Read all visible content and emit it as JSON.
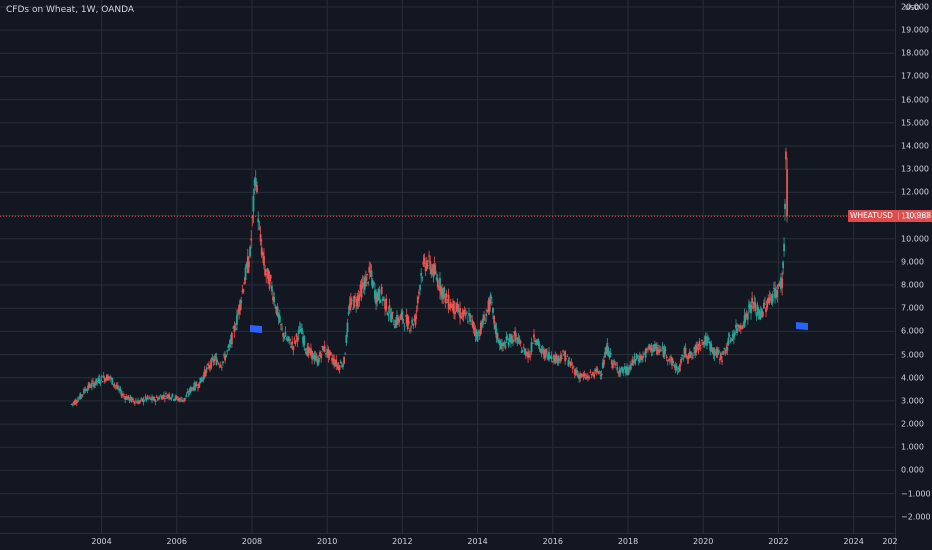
{
  "header": {
    "title": "CFDs on Wheat, 1W, OANDA",
    "currency": "USD"
  },
  "colors": {
    "background": "#131722",
    "grid": "#2a2e39",
    "up": "#26a69a",
    "down": "#ef5350",
    "last_price_line": "#ef5350",
    "flag": "#2962ff"
  },
  "price_tag": {
    "symbol": "WHEATUSD",
    "value": "10.968"
  },
  "icons": [
    "flag-icon",
    "flag-icon"
  ],
  "chart_data": {
    "type": "candlestick",
    "title": "CFDs on Wheat, 1W, OANDA",
    "y_ticks": [
      "20.000",
      "19.000",
      "18.000",
      "17.000",
      "16.000",
      "15.000",
      "14.000",
      "13.000",
      "12.000",
      "11.000",
      "10.000",
      "9.000",
      "8.000",
      "7.000",
      "6.000",
      "5.000",
      "4.000",
      "3.000",
      "2.000",
      "1.000",
      "0.000",
      "−1.000",
      "−2.000"
    ],
    "x_ticks": [
      "2004",
      "2006",
      "2008",
      "2010",
      "2012",
      "2014",
      "2016",
      "2018",
      "2020",
      "2022",
      "2024",
      "202"
    ],
    "ylim": [
      -2.7,
      20.3
    ],
    "xlim": [
      2001.3,
      2025.1
    ],
    "last_value": 10.968,
    "series": [
      {
        "name": "WHEATUSD",
        "points": [
          [
            2003.2,
            2.85
          ],
          [
            2003.4,
            3.1
          ],
          [
            2003.6,
            3.55
          ],
          [
            2003.8,
            3.75
          ],
          [
            2004.0,
            3.95
          ],
          [
            2004.2,
            4.05
          ],
          [
            2004.4,
            3.6
          ],
          [
            2004.6,
            3.2
          ],
          [
            2004.8,
            3.05
          ],
          [
            2005.0,
            2.95
          ],
          [
            2005.2,
            3.1
          ],
          [
            2005.4,
            3.05
          ],
          [
            2005.6,
            3.2
          ],
          [
            2005.8,
            3.25
          ],
          [
            2006.0,
            3.1
          ],
          [
            2006.2,
            3.05
          ],
          [
            2006.4,
            3.55
          ],
          [
            2006.6,
            3.75
          ],
          [
            2006.8,
            4.35
          ],
          [
            2007.0,
            4.8
          ],
          [
            2007.2,
            4.6
          ],
          [
            2007.4,
            5.3
          ],
          [
            2007.6,
            6.5
          ],
          [
            2007.8,
            8.2
          ],
          [
            2007.95,
            9.3
          ],
          [
            2008.1,
            12.8
          ],
          [
            2008.2,
            10.2
          ],
          [
            2008.35,
            8.6
          ],
          [
            2008.5,
            8.1
          ],
          [
            2008.65,
            7.0
          ],
          [
            2008.8,
            6.0
          ],
          [
            2008.95,
            5.6
          ],
          [
            2009.1,
            5.4
          ],
          [
            2009.3,
            6.1
          ],
          [
            2009.45,
            5.2
          ],
          [
            2009.6,
            5.0
          ],
          [
            2009.75,
            4.7
          ],
          [
            2009.9,
            5.3
          ],
          [
            2010.1,
            4.9
          ],
          [
            2010.3,
            4.5
          ],
          [
            2010.45,
            4.7
          ],
          [
            2010.6,
            7.1
          ],
          [
            2010.8,
            7.4
          ],
          [
            2011.0,
            8.1
          ],
          [
            2011.15,
            8.5
          ],
          [
            2011.3,
            7.5
          ],
          [
            2011.45,
            7.6
          ],
          [
            2011.6,
            7.0
          ],
          [
            2011.8,
            6.4
          ],
          [
            2012.0,
            6.6
          ],
          [
            2012.2,
            6.3
          ],
          [
            2012.35,
            6.5
          ],
          [
            2012.5,
            8.5
          ],
          [
            2012.65,
            9.0
          ],
          [
            2012.8,
            8.7
          ],
          [
            2013.0,
            8.0
          ],
          [
            2013.2,
            7.3
          ],
          [
            2013.4,
            7.0
          ],
          [
            2013.6,
            6.7
          ],
          [
            2013.8,
            6.6
          ],
          [
            2014.0,
            5.8
          ],
          [
            2014.2,
            6.6
          ],
          [
            2014.35,
            7.3
          ],
          [
            2014.5,
            5.9
          ],
          [
            2014.65,
            5.3
          ],
          [
            2014.8,
            5.6
          ],
          [
            2015.0,
            5.8
          ],
          [
            2015.2,
            5.2
          ],
          [
            2015.4,
            5.0
          ],
          [
            2015.5,
            5.9
          ],
          [
            2015.7,
            5.1
          ],
          [
            2015.9,
            5.0
          ],
          [
            2016.1,
            4.8
          ],
          [
            2016.3,
            5.0
          ],
          [
            2016.5,
            4.5
          ],
          [
            2016.7,
            4.1
          ],
          [
            2016.9,
            4.0
          ],
          [
            2017.1,
            4.2
          ],
          [
            2017.3,
            4.3
          ],
          [
            2017.45,
            5.3
          ],
          [
            2017.6,
            4.6
          ],
          [
            2017.8,
            4.3
          ],
          [
            2018.0,
            4.3
          ],
          [
            2018.2,
            4.8
          ],
          [
            2018.4,
            4.9
          ],
          [
            2018.6,
            5.3
          ],
          [
            2018.8,
            5.2
          ],
          [
            2019.0,
            5.1
          ],
          [
            2019.2,
            4.6
          ],
          [
            2019.35,
            4.3
          ],
          [
            2019.5,
            5.1
          ],
          [
            2019.7,
            4.9
          ],
          [
            2019.9,
            5.5
          ],
          [
            2020.1,
            5.6
          ],
          [
            2020.3,
            5.1
          ],
          [
            2020.5,
            4.9
          ],
          [
            2020.7,
            5.6
          ],
          [
            2020.9,
            6.1
          ],
          [
            2021.1,
            6.5
          ],
          [
            2021.3,
            7.2
          ],
          [
            2021.5,
            6.7
          ],
          [
            2021.7,
            7.2
          ],
          [
            2021.85,
            7.6
          ],
          [
            2022.0,
            7.8
          ],
          [
            2022.1,
            8.2
          ],
          [
            2022.15,
            9.5
          ],
          [
            2022.2,
            13.5
          ],
          [
            2022.23,
            10.968
          ]
        ]
      }
    ]
  }
}
